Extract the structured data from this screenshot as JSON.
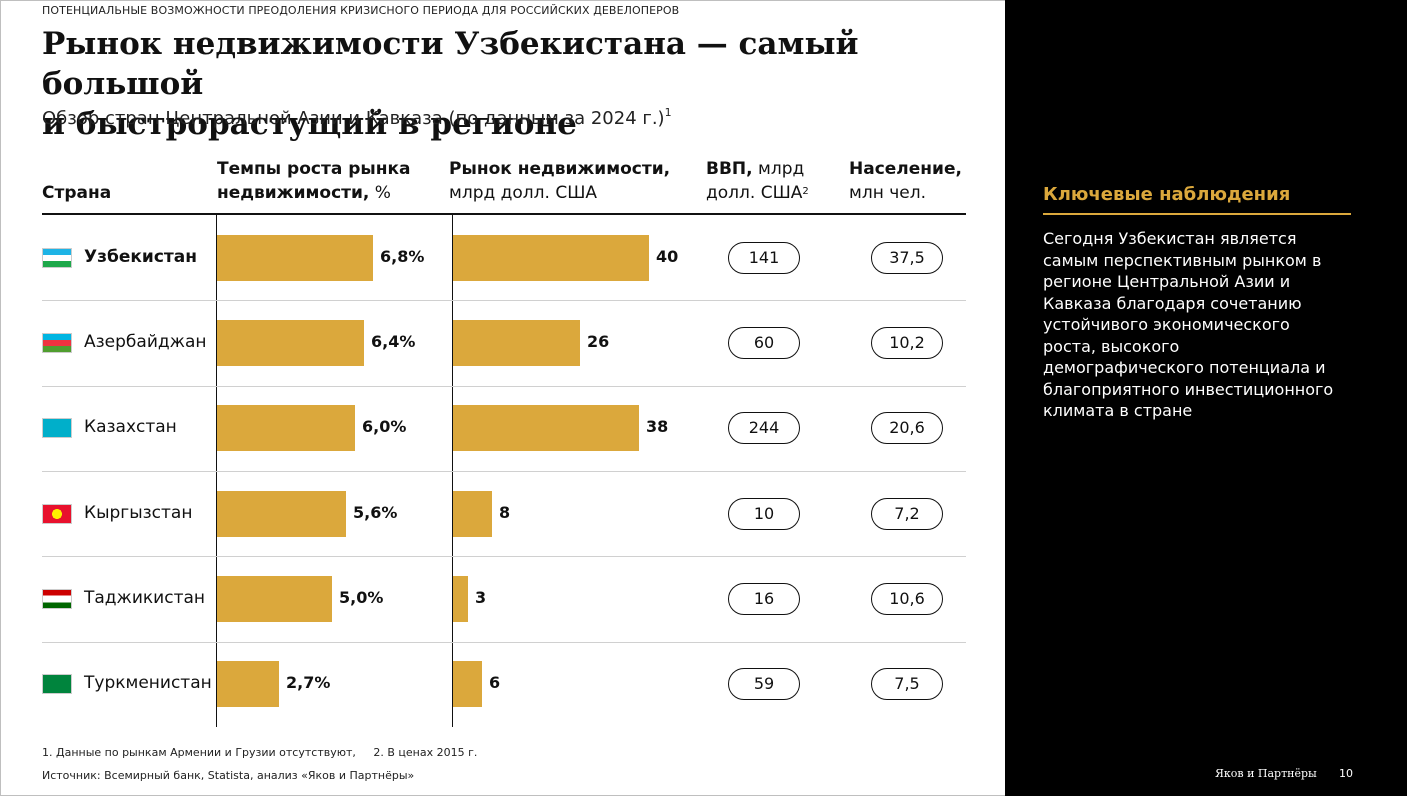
{
  "kicker": "ПОТЕНЦИАЛЬНЫЕ ВОЗМОЖНОСТИ ПРЕОДОЛЕНИЯ КРИЗИСНОГО ПЕРИОДА ДЛЯ РОССИЙСКИХ ДЕВЕЛОПЕРОВ",
  "title_line1": "Рынок недвижимости Узбекистана — самый большой",
  "title_line2": "и быстрорастущий в регионе",
  "subtitle": "Обзор стран Центральной Азии и Кавказа (по данным за 2024 г.)",
  "subtitle_note": "1",
  "headers": {
    "country": "Страна",
    "growth_bold_1": "Темпы роста рынка",
    "growth_bold_2": "недвижимости,",
    "growth_unit": " %",
    "market_bold": "Рынок недвижимости,",
    "market_unit": "млрд долл. США",
    "gdp_bold": "ВВП,",
    "gdp_unit_1": " млрд",
    "gdp_unit_2": "долл. США",
    "gdp_note": "2",
    "pop_bold": "Население,",
    "pop_unit": "млн чел."
  },
  "chart_data": {
    "type": "table",
    "columns": [
      "Страна",
      "Темпы роста рынка недвижимости, %",
      "Рынок недвижимости, млрд долл. США",
      "ВВП, млрд долл. США",
      "Население, млн чел."
    ],
    "rows": [
      {
        "country": "Узбекистан",
        "growth": 6.8,
        "growth_label": "6,8%",
        "market": 40,
        "market_label": "40",
        "gdp": "141",
        "population": "37,5",
        "highlight": true
      },
      {
        "country": "Азербайджан",
        "growth": 6.4,
        "growth_label": "6,4%",
        "market": 26,
        "market_label": "26",
        "gdp": "60",
        "population": "10,2",
        "highlight": false
      },
      {
        "country": "Казахстан",
        "growth": 6.0,
        "growth_label": "6,0%",
        "market": 38,
        "market_label": "38",
        "gdp": "244",
        "population": "20,6",
        "highlight": false
      },
      {
        "country": "Кыргызстан",
        "growth": 5.6,
        "growth_label": "5,6%",
        "market": 8,
        "market_label": "8",
        "gdp": "10",
        "population": "7,2",
        "highlight": false
      },
      {
        "country": "Таджикистан",
        "growth": 5.0,
        "growth_label": "5,0%",
        "market": 3,
        "market_label": "3",
        "gdp": "16",
        "population": "10,6",
        "highlight": false
      },
      {
        "country": "Туркменистан",
        "growth": 2.7,
        "growth_label": "2,7%",
        "market": 6,
        "market_label": "6",
        "gdp": "59",
        "population": "7,5",
        "highlight": false
      }
    ],
    "bar_color": "#DBA83C"
  },
  "footnotes": {
    "note1": "1. Данные по рынкам Армении и Грузии отсутствуют,",
    "note2": "2. В ценах 2015 г.",
    "source": "Источник: Всемирный банк, Statista, анализ «Яков и Партнёры»"
  },
  "panel": {
    "title": "Ключевые наблюдения",
    "text": "Сегодня Узбекистан является самым перспективным рынком в регионе Центральной Азии и Кавказа благодаря сочетанию устойчивого экономического роста, высокого демографического потенциала и благоприятного инвестиционного климата в стране",
    "brand": "Яков и Партнёры",
    "page_number": "10"
  },
  "colors": {
    "accent": "#DBA83C",
    "panel_bg": "#000000"
  }
}
